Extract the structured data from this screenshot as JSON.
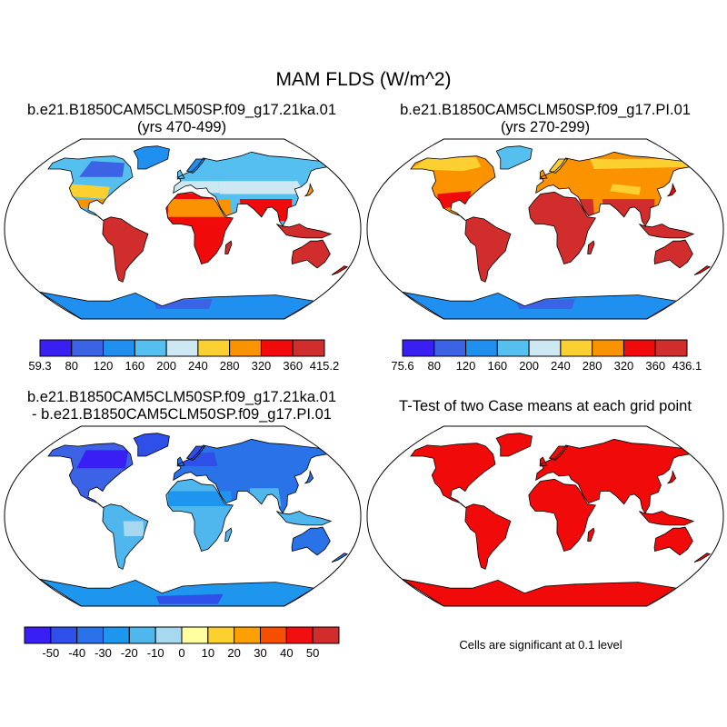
{
  "title": "MAM FLDS (W/m^2)",
  "panels": [
    {
      "id": "p1",
      "title_line1": "b.e21.B1850CAM5CLM50SP.f09_g17.21ka.01",
      "title_line2": "(yrs 470-499)",
      "colorbar": {
        "colors": [
          "#3a1ff5",
          "#3c62e6",
          "#1f90f0",
          "#55bff0",
          "#cde8f2",
          "#fcd030",
          "#fb9200",
          "#f00a0a",
          "#d22d2d"
        ],
        "labels": [
          "59.3",
          "80",
          "120",
          "160",
          "200",
          "240",
          "280",
          "320",
          "360",
          "415.2"
        ]
      }
    },
    {
      "id": "p2",
      "title_line1": "b.e21.B1850CAM5CLM50SP.f09_g17.PI.01",
      "title_line2": "(yrs 270-299)",
      "colorbar": {
        "colors": [
          "#3a1ff5",
          "#3c62e6",
          "#1f90f0",
          "#55bff0",
          "#cde8f2",
          "#fcd030",
          "#fb9200",
          "#f00a0a",
          "#d22d2d"
        ],
        "labels": [
          "75.6",
          "80",
          "120",
          "160",
          "200",
          "240",
          "280",
          "320",
          "360",
          "436.1"
        ]
      }
    },
    {
      "id": "p3",
      "title_line1": "b.e21.B1850CAM5CLM50SP.f09_g17.21ka.01",
      "title_line2": "- b.e21.B1850CAM5CLM50SP.f09_g17.PI.01",
      "colorbar": {
        "colors": [
          "#3a1ff5",
          "#2e4fe8",
          "#2a72e8",
          "#1f96ee",
          "#4fb6ee",
          "#a6d8f0",
          "#ffffa0",
          "#fcd030",
          "#fba000",
          "#f55000",
          "#f01010",
          "#d22d2d"
        ],
        "labels": [
          "-50",
          "-40",
          "-30",
          "-20",
          "-10",
          "0",
          "10",
          "20",
          "30",
          "40",
          "50"
        ]
      }
    },
    {
      "id": "p4",
      "title_line1": "T-Test of two Case means at each grid point",
      "note": "Cells are significant at 0.1 level"
    }
  ]
}
